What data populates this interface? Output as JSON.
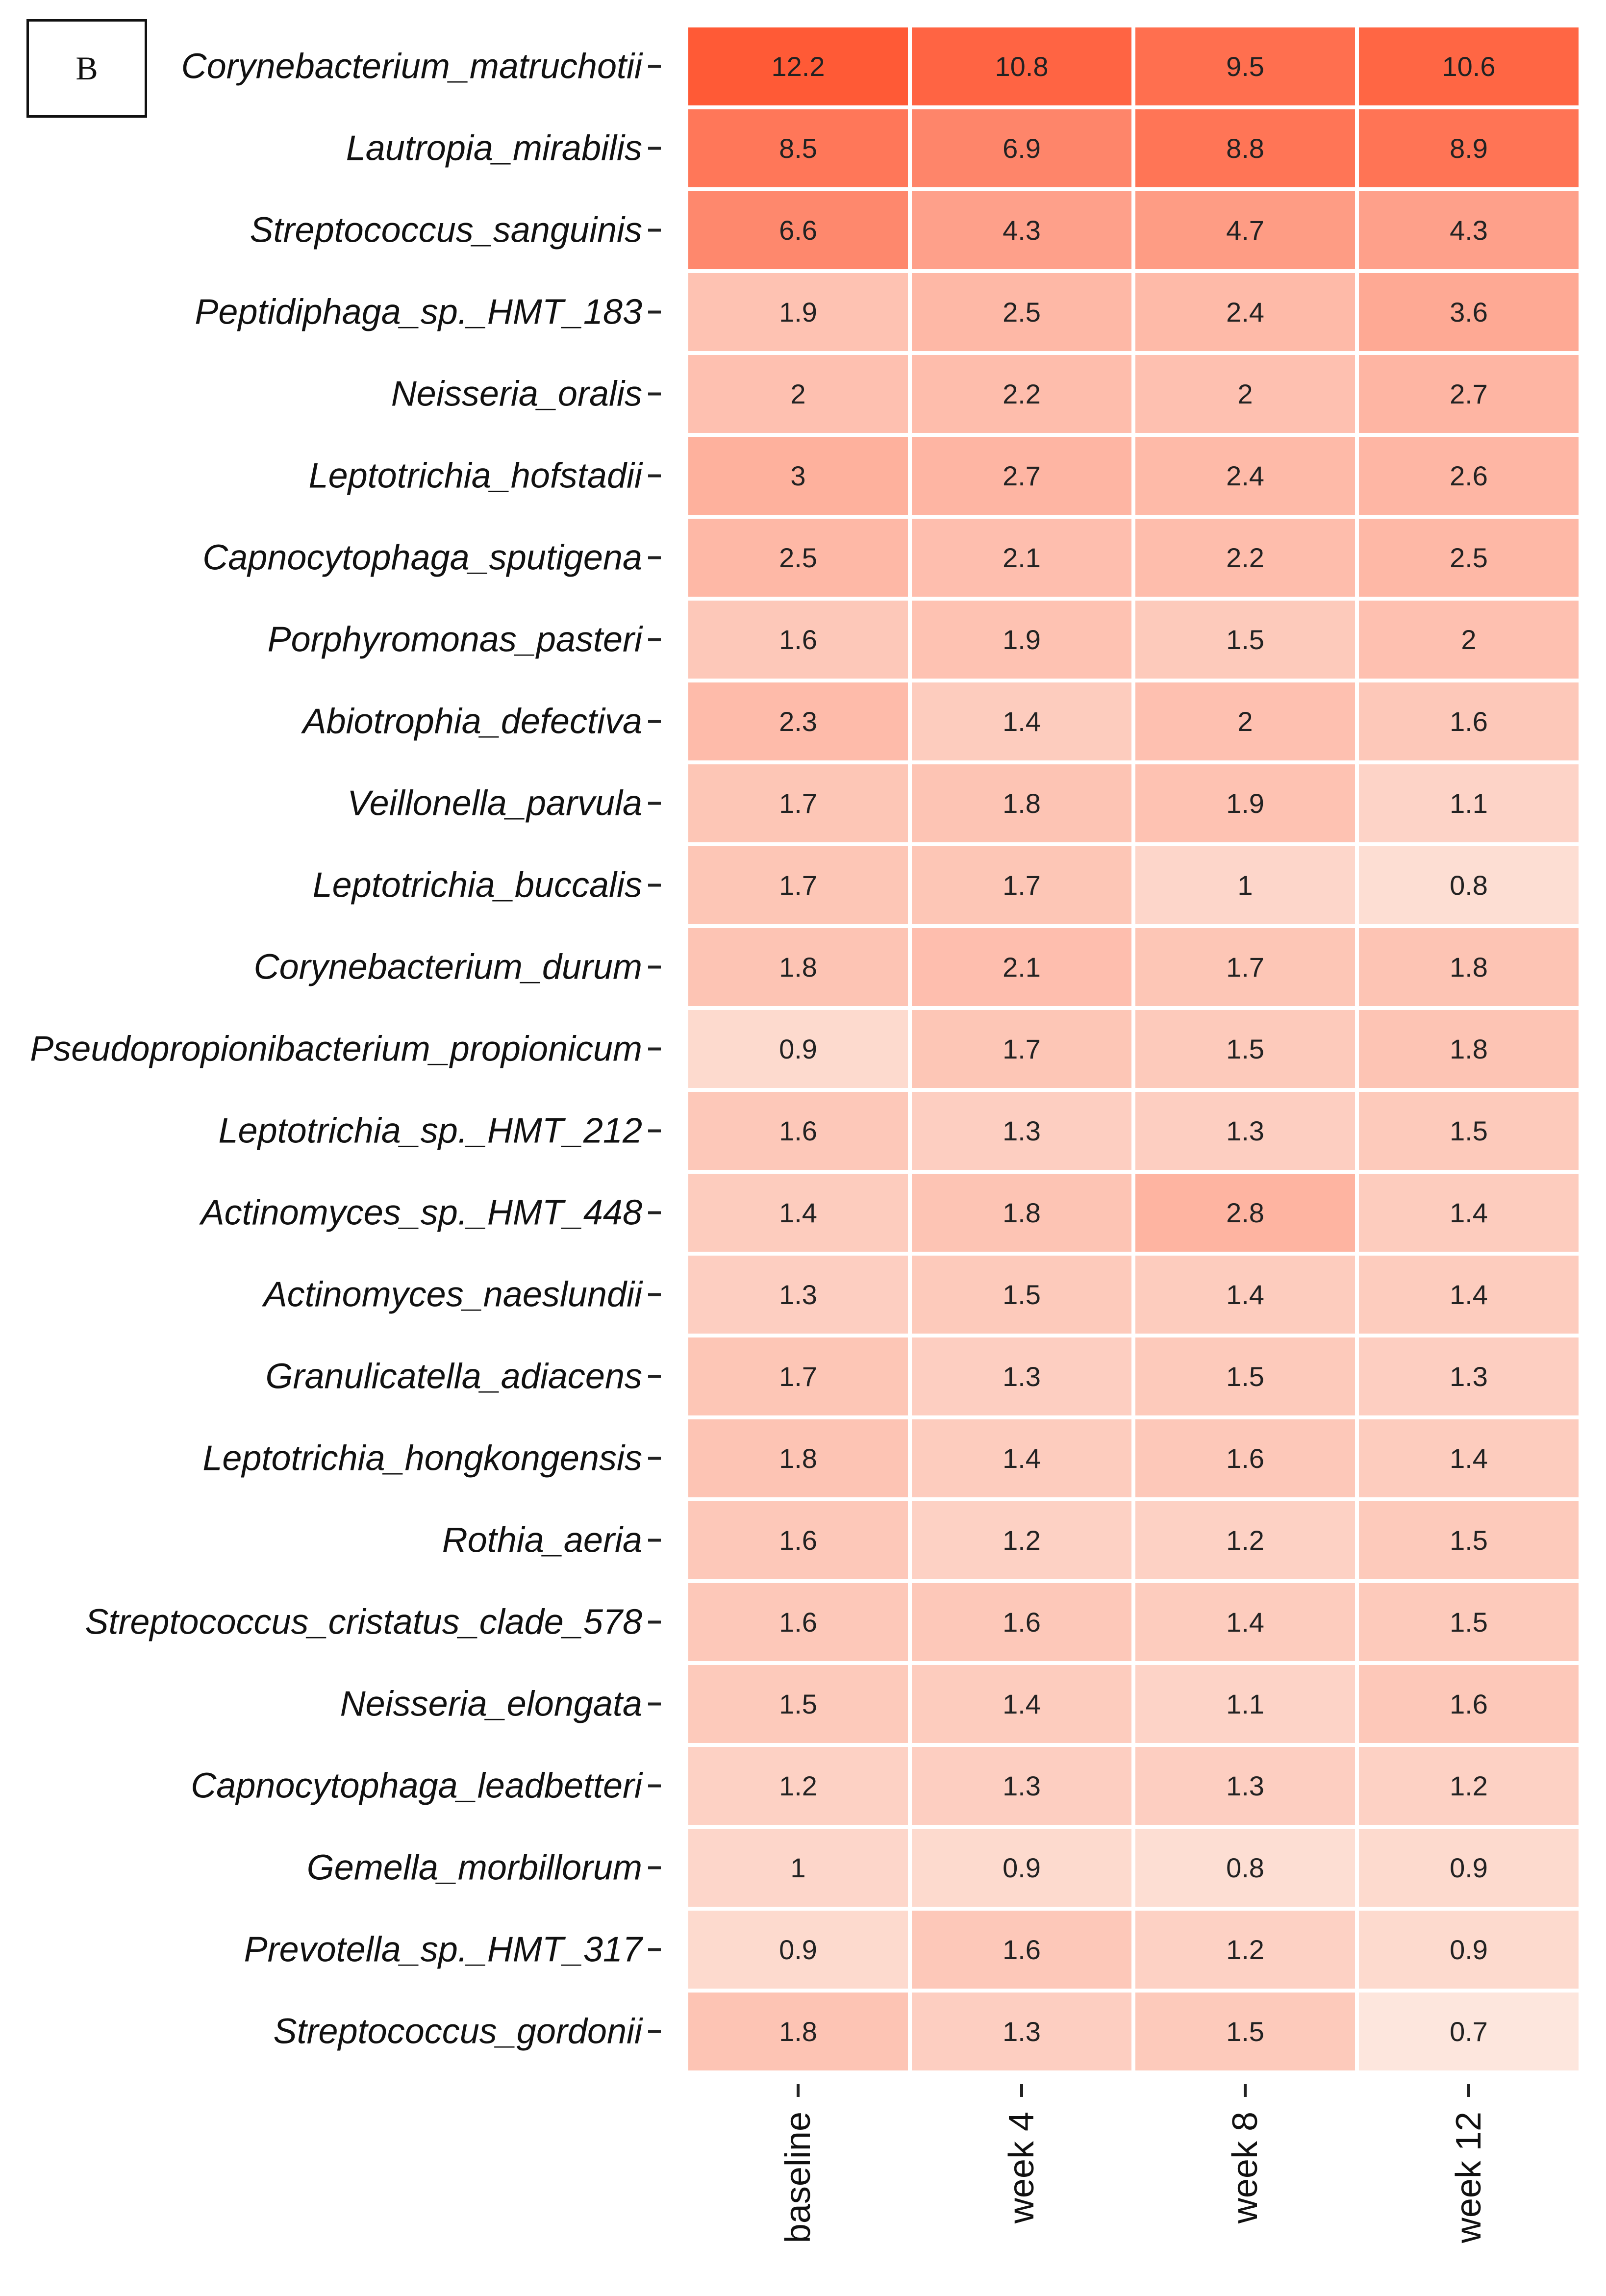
{
  "panel_label": "B",
  "colors": {
    "low": "#fde6dd",
    "high": "#ff5a36",
    "text": "#222222",
    "grid": "#ffffff"
  },
  "chart_data": {
    "type": "heatmap",
    "title": "",
    "xlabel": "",
    "ylabel": "",
    "columns": [
      "baseline",
      "week 4",
      "week 8",
      "week 12"
    ],
    "rows": [
      "Corynebacterium_matruchotii",
      "Lautropia_mirabilis",
      "Streptococcus_sanguinis",
      "Peptidiphaga_sp._HMT_183",
      "Neisseria_oralis",
      "Leptotrichia_hofstadii",
      "Capnocytophaga_sputigena",
      "Porphyromonas_pasteri",
      "Abiotrophia_defectiva",
      "Veillonella_parvula",
      "Leptotrichia_buccalis",
      "Corynebacterium_durum",
      "Pseudopropionibacterium_propionicum",
      "Leptotrichia_sp._HMT_212",
      "Actinomyces_sp._HMT_448",
      "Actinomyces_naeslundii",
      "Granulicatella_adiacens",
      "Leptotrichia_hongkongensis",
      "Rothia_aeria",
      "Streptococcus_cristatus_clade_578",
      "Neisseria_elongata",
      "Capnocytophaga_leadbetteri",
      "Gemella_morbillorum",
      "Prevotella_sp._HMT_317",
      "Streptococcus_gordonii"
    ],
    "values": [
      [
        "12.2",
        "10.8",
        "9.5",
        "10.6"
      ],
      [
        "8.5",
        "6.9",
        "8.8",
        "8.9"
      ],
      [
        "6.6",
        "4.3",
        "4.7",
        "4.3"
      ],
      [
        "1.9",
        "2.5",
        "2.4",
        "3.6"
      ],
      [
        "2",
        "2.2",
        "2",
        "2.7"
      ],
      [
        "3",
        "2.7",
        "2.4",
        "2.6"
      ],
      [
        "2.5",
        "2.1",
        "2.2",
        "2.5"
      ],
      [
        "1.6",
        "1.9",
        "1.5",
        "2"
      ],
      [
        "2.3",
        "1.4",
        "2",
        "1.6"
      ],
      [
        "1.7",
        "1.8",
        "1.9",
        "1.1"
      ],
      [
        "1.7",
        "1.7",
        "1",
        "0.8"
      ],
      [
        "1.8",
        "2.1",
        "1.7",
        "1.8"
      ],
      [
        "0.9",
        "1.7",
        "1.5",
        "1.8"
      ],
      [
        "1.6",
        "1.3",
        "1.3",
        "1.5"
      ],
      [
        "1.4",
        "1.8",
        "2.8",
        "1.4"
      ],
      [
        "1.3",
        "1.5",
        "1.4",
        "1.4"
      ],
      [
        "1.7",
        "1.3",
        "1.5",
        "1.3"
      ],
      [
        "1.8",
        "1.4",
        "1.6",
        "1.4"
      ],
      [
        "1.6",
        "1.2",
        "1.2",
        "1.5"
      ],
      [
        "1.6",
        "1.6",
        "1.4",
        "1.5"
      ],
      [
        "1.5",
        "1.4",
        "1.1",
        "1.6"
      ],
      [
        "1.2",
        "1.3",
        "1.3",
        "1.2"
      ],
      [
        "1",
        "0.9",
        "0.8",
        "0.9"
      ],
      [
        "0.9",
        "1.6",
        "1.2",
        "0.9"
      ],
      [
        "1.8",
        "1.3",
        "1.5",
        "0.7"
      ]
    ]
  }
}
